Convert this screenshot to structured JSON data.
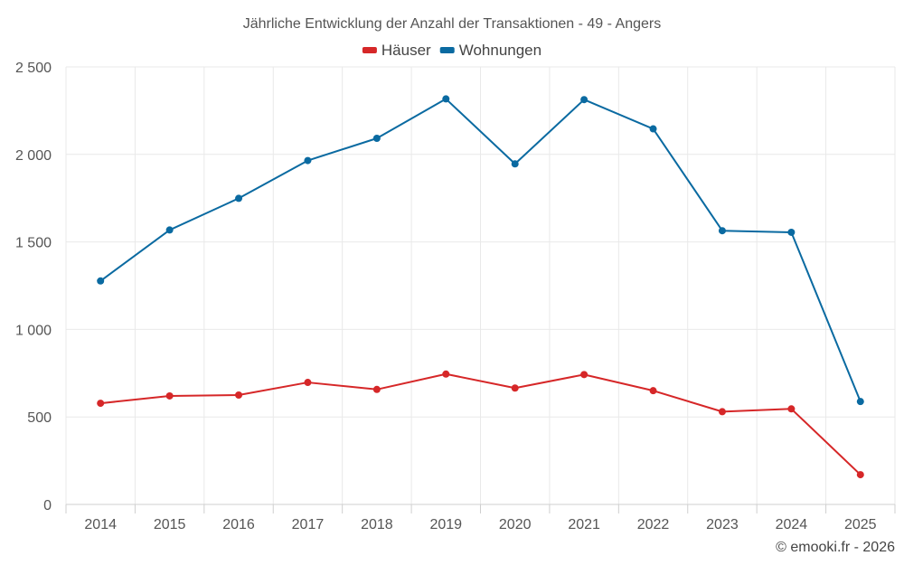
{
  "chart_data": {
    "type": "line",
    "title": "Jährliche Entwicklung der Anzahl der Transaktionen - 49 - Angers",
    "categories": [
      "2014",
      "2015",
      "2016",
      "2017",
      "2018",
      "2019",
      "2020",
      "2021",
      "2022",
      "2023",
      "2024",
      "2025"
    ],
    "series": [
      {
        "name": "Häuser",
        "color": "#d62728",
        "values": [
          578,
          620,
          625,
          697,
          657,
          745,
          665,
          742,
          650,
          530,
          546,
          170
        ]
      },
      {
        "name": "Wohnungen",
        "color": "#0a6aa1",
        "values": [
          1277,
          1568,
          1749,
          1965,
          2092,
          2317,
          1946,
          2313,
          2146,
          1564,
          1555,
          588
        ]
      }
    ],
    "y_ticks": [
      0,
      500,
      1000,
      1500,
      2000,
      2500
    ],
    "y_tick_labels": [
      "0",
      "500",
      "1 000",
      "1 500",
      "2 000",
      "2 500"
    ],
    "ylim": [
      0,
      2500
    ],
    "legend_position": "top-center",
    "grid": true,
    "credit": "© emooki.fr - 2026"
  }
}
